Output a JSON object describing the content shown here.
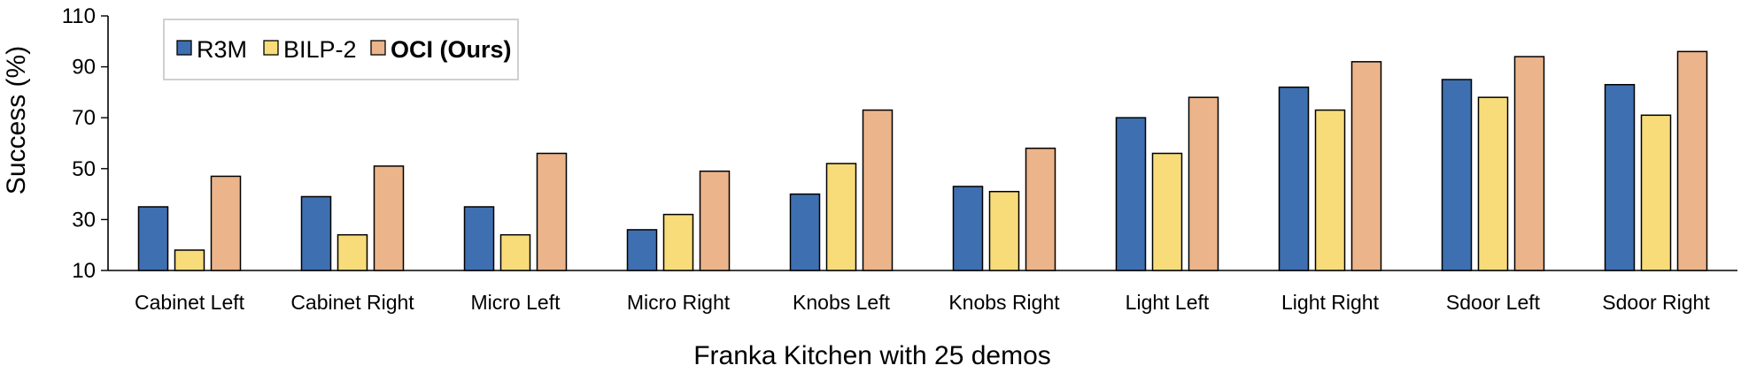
{
  "chart_data": {
    "type": "bar",
    "title": "",
    "xlabel": "Franka Kitchen with 25 demos",
    "ylabel": "Success (%)",
    "ylim": [
      10,
      110
    ],
    "yticks": [
      10,
      30,
      50,
      70,
      90,
      110
    ],
    "grid": false,
    "legend_position": "top-left",
    "categories": [
      "Cabinet Left",
      "Cabinet Right",
      "Micro Left",
      "Micro Right",
      "Knobs Left",
      "Knobs Right",
      "Light Left",
      "Light Right",
      "Sdoor Left",
      "Sdoor Right"
    ],
    "series": [
      {
        "name": "R3M",
        "color": "#3e6fb0",
        "values": [
          35,
          39,
          35,
          26,
          40,
          43,
          70,
          82,
          85,
          83
        ]
      },
      {
        "name": "BILP-2",
        "color": "#f8dc7a",
        "values": [
          18,
          24,
          24,
          32,
          52,
          41,
          56,
          73,
          78,
          71
        ]
      },
      {
        "name": "OCI (Ours)",
        "color": "#ebb48a",
        "values": [
          47,
          51,
          56,
          49,
          73,
          58,
          78,
          92,
          94,
          96
        ]
      }
    ]
  }
}
